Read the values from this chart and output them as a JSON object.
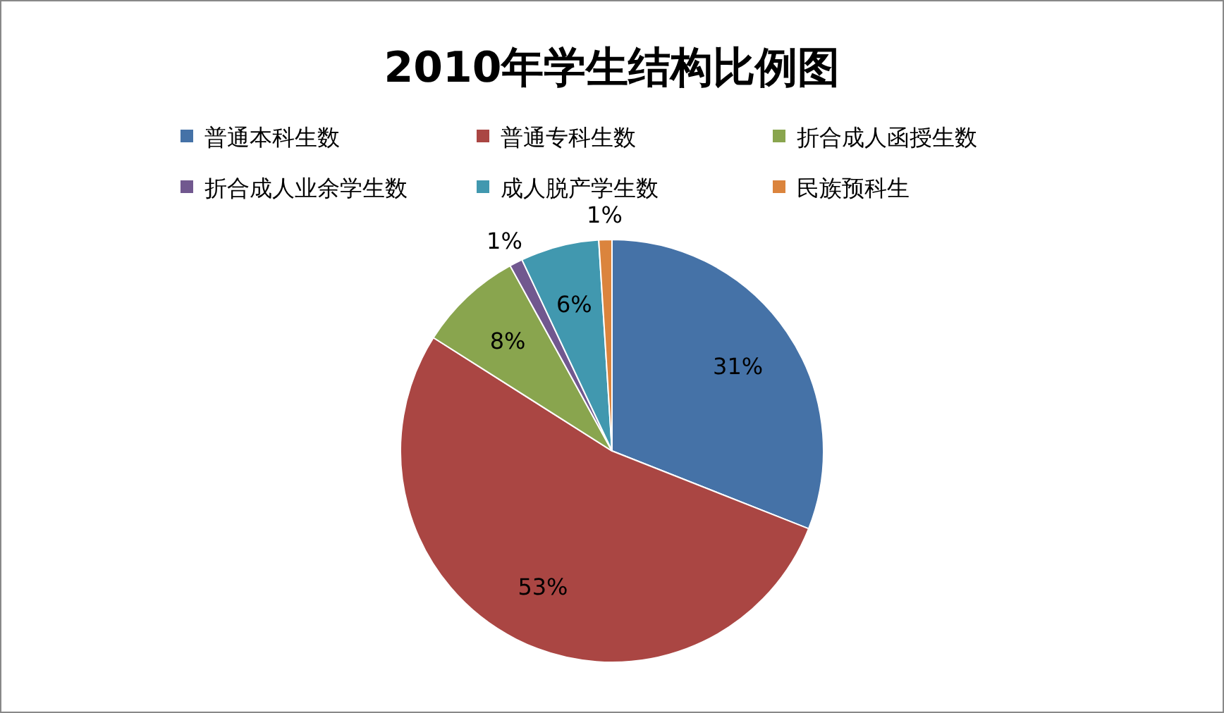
{
  "chart_data": {
    "type": "pie",
    "title": "2010年学生结构比例图",
    "categories": [
      "普通本科生数",
      "普通专科生数",
      "折合成人函授生数",
      "折合成人业余学生数",
      "成人脱产学生数",
      "民族预科生"
    ],
    "values": [
      31,
      53,
      8,
      1,
      6,
      1
    ],
    "colors": [
      "#4572a7",
      "#aa4643",
      "#89a54e",
      "#71588f",
      "#4198af",
      "#db843d"
    ],
    "value_labels": [
      "31%",
      "53%",
      "8%",
      "1%",
      "6%",
      "1%"
    ],
    "legend": "top"
  }
}
